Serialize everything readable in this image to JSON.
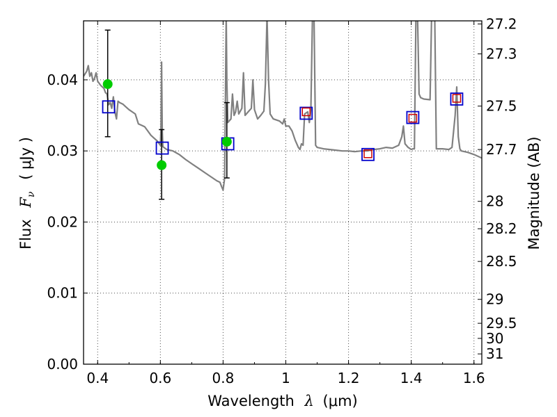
{
  "chart_data": {
    "type": "scatter",
    "grid": true,
    "x_axis": {
      "label_text": "Wavelength",
      "label_symbol": "λ",
      "label_unit": "(μm)",
      "range": [
        0.355,
        1.625
      ],
      "ticks": [
        0.4,
        0.6,
        0.8,
        1.0,
        1.2,
        1.4,
        1.6
      ],
      "tick_labels": [
        "0.4",
        "0.6",
        "0.8",
        "1",
        "1.2",
        "1.4",
        "1.6"
      ]
    },
    "y_axis": {
      "label_text": "Flux",
      "label_symbol": "F",
      "label_subscript": "ν",
      "label_unit": "( μJy )",
      "range": [
        0.0,
        0.0483
      ],
      "ticks": [
        0.0,
        0.01,
        0.02,
        0.03,
        0.04
      ],
      "tick_labels": [
        "0.00",
        "0.01",
        "0.02",
        "0.03",
        "0.04"
      ]
    },
    "y2_axis": {
      "label": "Magnitude (AB)",
      "ticks": [
        27.2,
        27.3,
        27.5,
        27.7,
        28,
        28.2,
        28.5,
        29,
        29.5,
        30,
        31
      ],
      "tick_labels": [
        "27.2",
        "27.3",
        "27.5",
        "27.7",
        "28",
        "28.2",
        "28.5",
        "29",
        "29.5",
        "30",
        "31"
      ]
    },
    "series": [
      {
        "kind": "model-spectrum",
        "color": "#808080",
        "points": [
          [
            0.355,
            0.0405
          ],
          [
            0.365,
            0.0412
          ],
          [
            0.37,
            0.042
          ],
          [
            0.375,
            0.0405
          ],
          [
            0.38,
            0.041
          ],
          [
            0.385,
            0.0398
          ],
          [
            0.39,
            0.0402
          ],
          [
            0.395,
            0.041
          ],
          [
            0.4,
            0.0398
          ],
          [
            0.41,
            0.0392
          ],
          [
            0.42,
            0.0388
          ],
          [
            0.425,
            0.0382
          ],
          [
            0.43,
            0.038
          ],
          [
            0.435,
            0.0365
          ],
          [
            0.44,
            0.0368
          ],
          [
            0.445,
            0.036
          ],
          [
            0.45,
            0.0376
          ],
          [
            0.455,
            0.0355
          ],
          [
            0.46,
            0.0345
          ],
          [
            0.465,
            0.037
          ],
          [
            0.47,
            0.0368
          ],
          [
            0.48,
            0.0366
          ],
          [
            0.49,
            0.0362
          ],
          [
            0.5,
            0.0358
          ],
          [
            0.51,
            0.0355
          ],
          [
            0.52,
            0.0352
          ],
          [
            0.53,
            0.0338
          ],
          [
            0.54,
            0.0336
          ],
          [
            0.55,
            0.0334
          ],
          [
            0.56,
            0.0328
          ],
          [
            0.57,
            0.0322
          ],
          [
            0.58,
            0.0318
          ],
          [
            0.59,
            0.0314
          ],
          [
            0.6,
            0.0308
          ],
          [
            0.602,
            0.033
          ],
          [
            0.604,
            0.0425
          ],
          [
            0.606,
            0.033
          ],
          [
            0.608,
            0.0306
          ],
          [
            0.62,
            0.0302
          ],
          [
            0.64,
            0.03
          ],
          [
            0.66,
            0.0295
          ],
          [
            0.68,
            0.0288
          ],
          [
            0.7,
            0.0282
          ],
          [
            0.72,
            0.0276
          ],
          [
            0.74,
            0.027
          ],
          [
            0.76,
            0.0264
          ],
          [
            0.78,
            0.0258
          ],
          [
            0.79,
            0.0256
          ],
          [
            0.795,
            0.025
          ],
          [
            0.8,
            0.0245
          ],
          [
            0.805,
            0.0262
          ],
          [
            0.808,
            0.04
          ],
          [
            0.81,
            0.049
          ],
          [
            0.812,
            0.04
          ],
          [
            0.815,
            0.034
          ],
          [
            0.825,
            0.0345
          ],
          [
            0.83,
            0.038
          ],
          [
            0.835,
            0.035
          ],
          [
            0.84,
            0.0355
          ],
          [
            0.845,
            0.037
          ],
          [
            0.85,
            0.0352
          ],
          [
            0.86,
            0.036
          ],
          [
            0.865,
            0.041
          ],
          [
            0.87,
            0.035
          ],
          [
            0.88,
            0.0355
          ],
          [
            0.89,
            0.036
          ],
          [
            0.895,
            0.04
          ],
          [
            0.9,
            0.0358
          ],
          [
            0.91,
            0.0345
          ],
          [
            0.92,
            0.035
          ],
          [
            0.93,
            0.0356
          ],
          [
            0.935,
            0.0395
          ],
          [
            0.94,
            0.049
          ],
          [
            0.945,
            0.04
          ],
          [
            0.95,
            0.0352
          ],
          [
            0.96,
            0.0345
          ],
          [
            0.98,
            0.0342
          ],
          [
            0.99,
            0.0338
          ],
          [
            0.995,
            0.0345
          ],
          [
            1.0,
            0.0335
          ],
          [
            1.01,
            0.0335
          ],
          [
            1.02,
            0.0328
          ],
          [
            1.03,
            0.0315
          ],
          [
            1.04,
            0.0305
          ],
          [
            1.045,
            0.0302
          ],
          [
            1.05,
            0.031
          ],
          [
            1.055,
            0.0308
          ],
          [
            1.06,
            0.0352
          ],
          [
            1.07,
            0.0355
          ],
          [
            1.075,
            0.034
          ],
          [
            1.08,
            0.0358
          ],
          [
            1.085,
            0.049
          ],
          [
            1.09,
            0.049
          ],
          [
            1.095,
            0.0308
          ],
          [
            1.1,
            0.0305
          ],
          [
            1.12,
            0.0303
          ],
          [
            1.14,
            0.0302
          ],
          [
            1.16,
            0.0301
          ],
          [
            1.18,
            0.03
          ],
          [
            1.2,
            0.03
          ],
          [
            1.22,
            0.0299
          ],
          [
            1.24,
            0.03
          ],
          [
            1.26,
            0.03
          ],
          [
            1.28,
            0.0302
          ],
          [
            1.3,
            0.0303
          ],
          [
            1.32,
            0.0305
          ],
          [
            1.34,
            0.0304
          ],
          [
            1.36,
            0.0308
          ],
          [
            1.37,
            0.032
          ],
          [
            1.375,
            0.0335
          ],
          [
            1.38,
            0.031
          ],
          [
            1.39,
            0.0305
          ],
          [
            1.4,
            0.0302
          ],
          [
            1.405,
            0.0303
          ],
          [
            1.41,
            0.0303
          ],
          [
            1.415,
            0.049
          ],
          [
            1.42,
            0.049
          ],
          [
            1.425,
            0.038
          ],
          [
            1.43,
            0.0375
          ],
          [
            1.44,
            0.0373
          ],
          [
            1.46,
            0.0372
          ],
          [
            1.465,
            0.049
          ],
          [
            1.475,
            0.049
          ],
          [
            1.48,
            0.0303
          ],
          [
            1.5,
            0.0303
          ],
          [
            1.52,
            0.0302
          ],
          [
            1.53,
            0.0305
          ],
          [
            1.54,
            0.035
          ],
          [
            1.545,
            0.039
          ],
          [
            1.55,
            0.032
          ],
          [
            1.555,
            0.0303
          ],
          [
            1.56,
            0.03
          ],
          [
            1.58,
            0.0298
          ],
          [
            1.6,
            0.0295
          ],
          [
            1.625,
            0.029
          ]
        ]
      },
      {
        "kind": "observed",
        "marker": "circle",
        "color": "#00cc00",
        "points": [
          {
            "x": 0.432,
            "y": 0.0394,
            "yerr": [
              0.032,
              0.047
            ]
          },
          {
            "x": 0.604,
            "y": 0.028,
            "yerr": [
              0.0232,
              0.033
            ]
          },
          {
            "x": 0.812,
            "y": 0.0313,
            "yerr": [
              0.0262,
              0.0368
            ]
          }
        ]
      },
      {
        "kind": "model-photometry",
        "marker": "square",
        "color": "#0000cc",
        "points": [
          {
            "x": 0.435,
            "y": 0.0362
          },
          {
            "x": 0.606,
            "y": 0.0304
          },
          {
            "x": 0.815,
            "y": 0.031
          },
          {
            "x": 1.065,
            "y": 0.0353
          },
          {
            "x": 1.262,
            "y": 0.0295
          },
          {
            "x": 1.405,
            "y": 0.0347
          },
          {
            "x": 1.545,
            "y": 0.0373
          }
        ]
      },
      {
        "kind": "model-photometry-inner",
        "marker": "square",
        "color": "#cc0000",
        "points": [
          {
            "x": 1.065,
            "y": 0.0355
          },
          {
            "x": 1.262,
            "y": 0.0296
          },
          {
            "x": 1.405,
            "y": 0.0346
          },
          {
            "x": 1.545,
            "y": 0.0374
          }
        ]
      }
    ]
  }
}
